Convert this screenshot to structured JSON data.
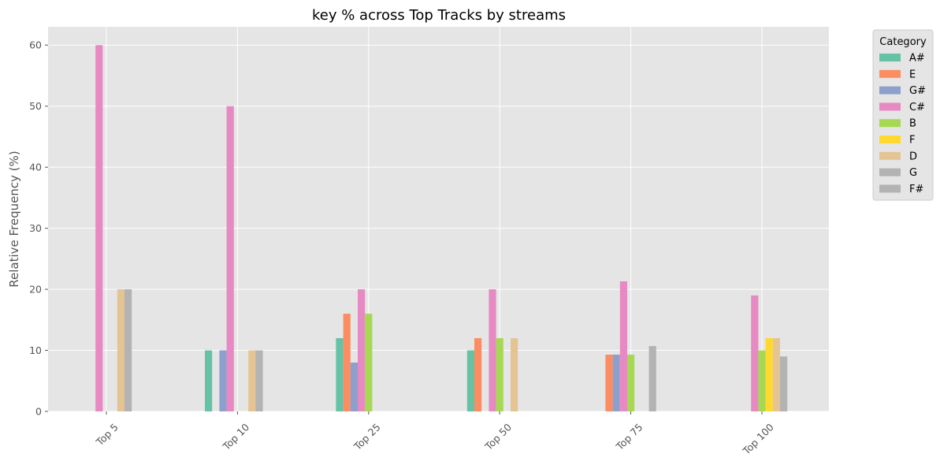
{
  "chart_data": {
    "type": "bar",
    "title": "key % across Top Tracks by streams",
    "xlabel": "",
    "ylabel": "Relative Frequency (%)",
    "ylim": [
      0,
      63
    ],
    "yticks": [
      0,
      10,
      20,
      30,
      40,
      50,
      60
    ],
    "categories": [
      "Top 5",
      "Top 10",
      "Top 25",
      "Top 50",
      "Top 75",
      "Top 100"
    ],
    "grid": true,
    "legend": {
      "title": "Category",
      "placement": "outside-top-right"
    },
    "series": [
      {
        "name": "A#",
        "color": "#66c2a5",
        "values": [
          0,
          10,
          12,
          10,
          0,
          0
        ]
      },
      {
        "name": "E",
        "color": "#fc8d62",
        "values": [
          0,
          0,
          16,
          12,
          9.3,
          0
        ]
      },
      {
        "name": "G#",
        "color": "#8da0cb",
        "values": [
          0,
          10,
          8,
          0,
          9.3,
          0
        ]
      },
      {
        "name": "C#",
        "color": "#e78ac3",
        "values": [
          60,
          50,
          20,
          20,
          21.3,
          19
        ]
      },
      {
        "name": "B",
        "color": "#a6d854",
        "values": [
          0,
          0,
          16,
          12,
          9.3,
          10
        ]
      },
      {
        "name": "F",
        "color": "#ffd92f",
        "values": [
          0,
          0,
          0,
          0,
          0,
          12
        ]
      },
      {
        "name": "D",
        "color": "#e5c494",
        "values": [
          20,
          10,
          0,
          12,
          0,
          12
        ]
      },
      {
        "name": "G",
        "color": "#b3b3b3",
        "values": [
          20,
          10,
          0,
          0,
          10.7,
          9
        ]
      },
      {
        "name": "F#",
        "color": "#b3b3b3",
        "values": [
          0,
          0,
          0,
          0,
          0,
          0
        ]
      }
    ]
  }
}
